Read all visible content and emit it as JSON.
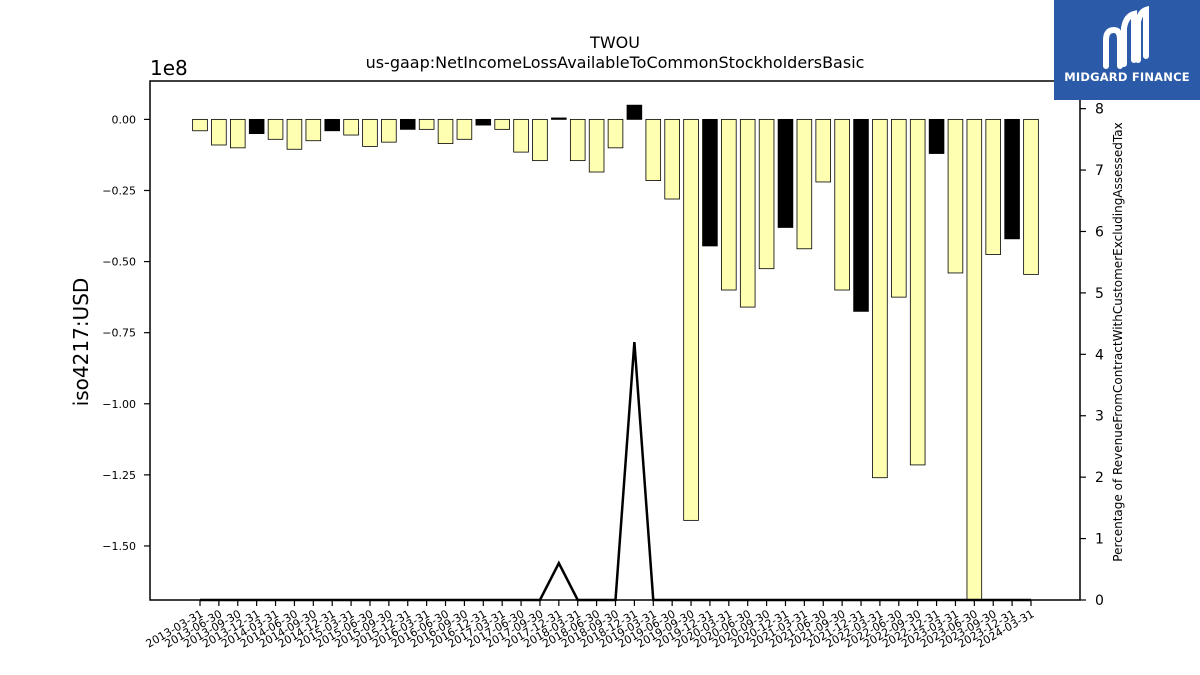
{
  "logo": {
    "text": "MIDGARD FINANCE",
    "color": "#2b5aa8"
  },
  "chart_data": {
    "type": "bar",
    "title": "TWOU",
    "subtitle": "us-gaap:NetIncomeLossAvailableToCommonStockholdersBasic",
    "ylabel": "iso4217:USD",
    "y_offset_label": "1e8",
    "y2label": "Percentage of RevenueFromContractWithCustomerExcludingAssessedTax",
    "ylim": [
      -1.69,
      0.135
    ],
    "y2lim": [
      0,
      8.45
    ],
    "yticks": [
      0.0,
      -0.25,
      -0.5,
      -0.75,
      -1.0,
      -1.25,
      -1.5
    ],
    "ytick_labels": [
      "0.00",
      "−0.25",
      "−0.50",
      "−0.75",
      "−1.00",
      "−1.25",
      "−1.50"
    ],
    "y2ticks": [
      0,
      1,
      2,
      3,
      4,
      5,
      6,
      7,
      8
    ],
    "y2tick_labels": [
      "0",
      "1",
      "2",
      "3",
      "4",
      "5",
      "6",
      "7",
      "8"
    ],
    "colors": {
      "positive_bar": "#ffffb2",
      "negative_bar": "#000000",
      "line": "#000000"
    },
    "categories": [
      "2013-03-31",
      "2013-06-30",
      "2013-09-30",
      "2013-12-31",
      "2014-03-31",
      "2014-06-30",
      "2014-09-30",
      "2014-12-31",
      "2015-03-31",
      "2015-06-30",
      "2015-09-30",
      "2015-12-31",
      "2016-03-31",
      "2016-06-30",
      "2016-09-30",
      "2016-12-31",
      "2017-03-31",
      "2017-06-30",
      "2017-09-30",
      "2017-12-31",
      "2018-03-31",
      "2018-06-30",
      "2018-09-30",
      "2018-12-31",
      "2019-03-31",
      "2019-06-30",
      "2019-09-30",
      "2019-12-31",
      "2020-03-31",
      "2020-06-30",
      "2020-09-30",
      "2020-12-31",
      "2021-03-31",
      "2021-06-30",
      "2021-09-30",
      "2021-12-31",
      "2022-03-31",
      "2022-06-30",
      "2022-09-30",
      "2022-12-31",
      "2023-03-31",
      "2023-06-30",
      "2023-09-30",
      "2023-12-31",
      "2024-03-31"
    ],
    "series": [
      {
        "values": [
          -0.04,
          -0.09,
          -0.1,
          -0.05,
          -0.07,
          -0.105,
          -0.075,
          -0.04,
          -0.055,
          -0.095,
          -0.08,
          -0.035,
          -0.035,
          -0.085,
          -0.07,
          -0.02,
          -0.035,
          -0.115,
          -0.145,
          0.005,
          -0.145,
          -0.185,
          -0.1,
          0.05,
          -0.215,
          -0.28,
          -1.41,
          -0.445,
          -0.6,
          -0.66,
          -0.525,
          -0.38,
          -0.455,
          -0.22,
          -0.6,
          -0.675,
          -1.26,
          -0.625,
          -1.215,
          -0.12,
          -0.54,
          -1.69,
          -0.475,
          -0.42,
          -0.545
        ],
        "fill": [
          "#ffffb2",
          "#ffffb2",
          "#ffffb2",
          "#000000",
          "#ffffb2",
          "#ffffb2",
          "#ffffb2",
          "#000000",
          "#ffffb2",
          "#ffffb2",
          "#ffffb2",
          "#000000",
          "#ffffb2",
          "#ffffb2",
          "#ffffb2",
          "#000000",
          "#ffffb2",
          "#ffffb2",
          "#ffffb2",
          "#000000",
          "#ffffb2",
          "#ffffb2",
          "#ffffb2",
          "#000000",
          "#ffffb2",
          "#ffffb2",
          "#ffffb2",
          "#000000",
          "#ffffb2",
          "#ffffb2",
          "#ffffb2",
          "#000000",
          "#ffffb2",
          "#ffffb2",
          "#ffffb2",
          "#000000",
          "#ffffb2",
          "#ffffb2",
          "#ffffb2",
          "#000000",
          "#ffffb2",
          "#ffffb2",
          "#ffffb2",
          "#000000",
          "#ffffb2"
        ]
      },
      {
        "type": "line",
        "axis": "y2",
        "values": [
          0,
          0,
          0,
          0,
          0,
          0,
          0,
          0,
          0,
          0,
          0,
          0,
          0,
          0,
          0,
          0,
          0,
          0,
          0,
          0.6,
          0,
          0,
          0,
          4.2,
          0,
          0,
          0,
          0,
          0,
          0,
          0,
          0,
          0,
          0,
          0,
          0,
          0,
          0,
          0,
          0,
          0,
          0,
          0,
          0,
          0
        ]
      }
    ],
    "grid": false,
    "legend": "none"
  }
}
